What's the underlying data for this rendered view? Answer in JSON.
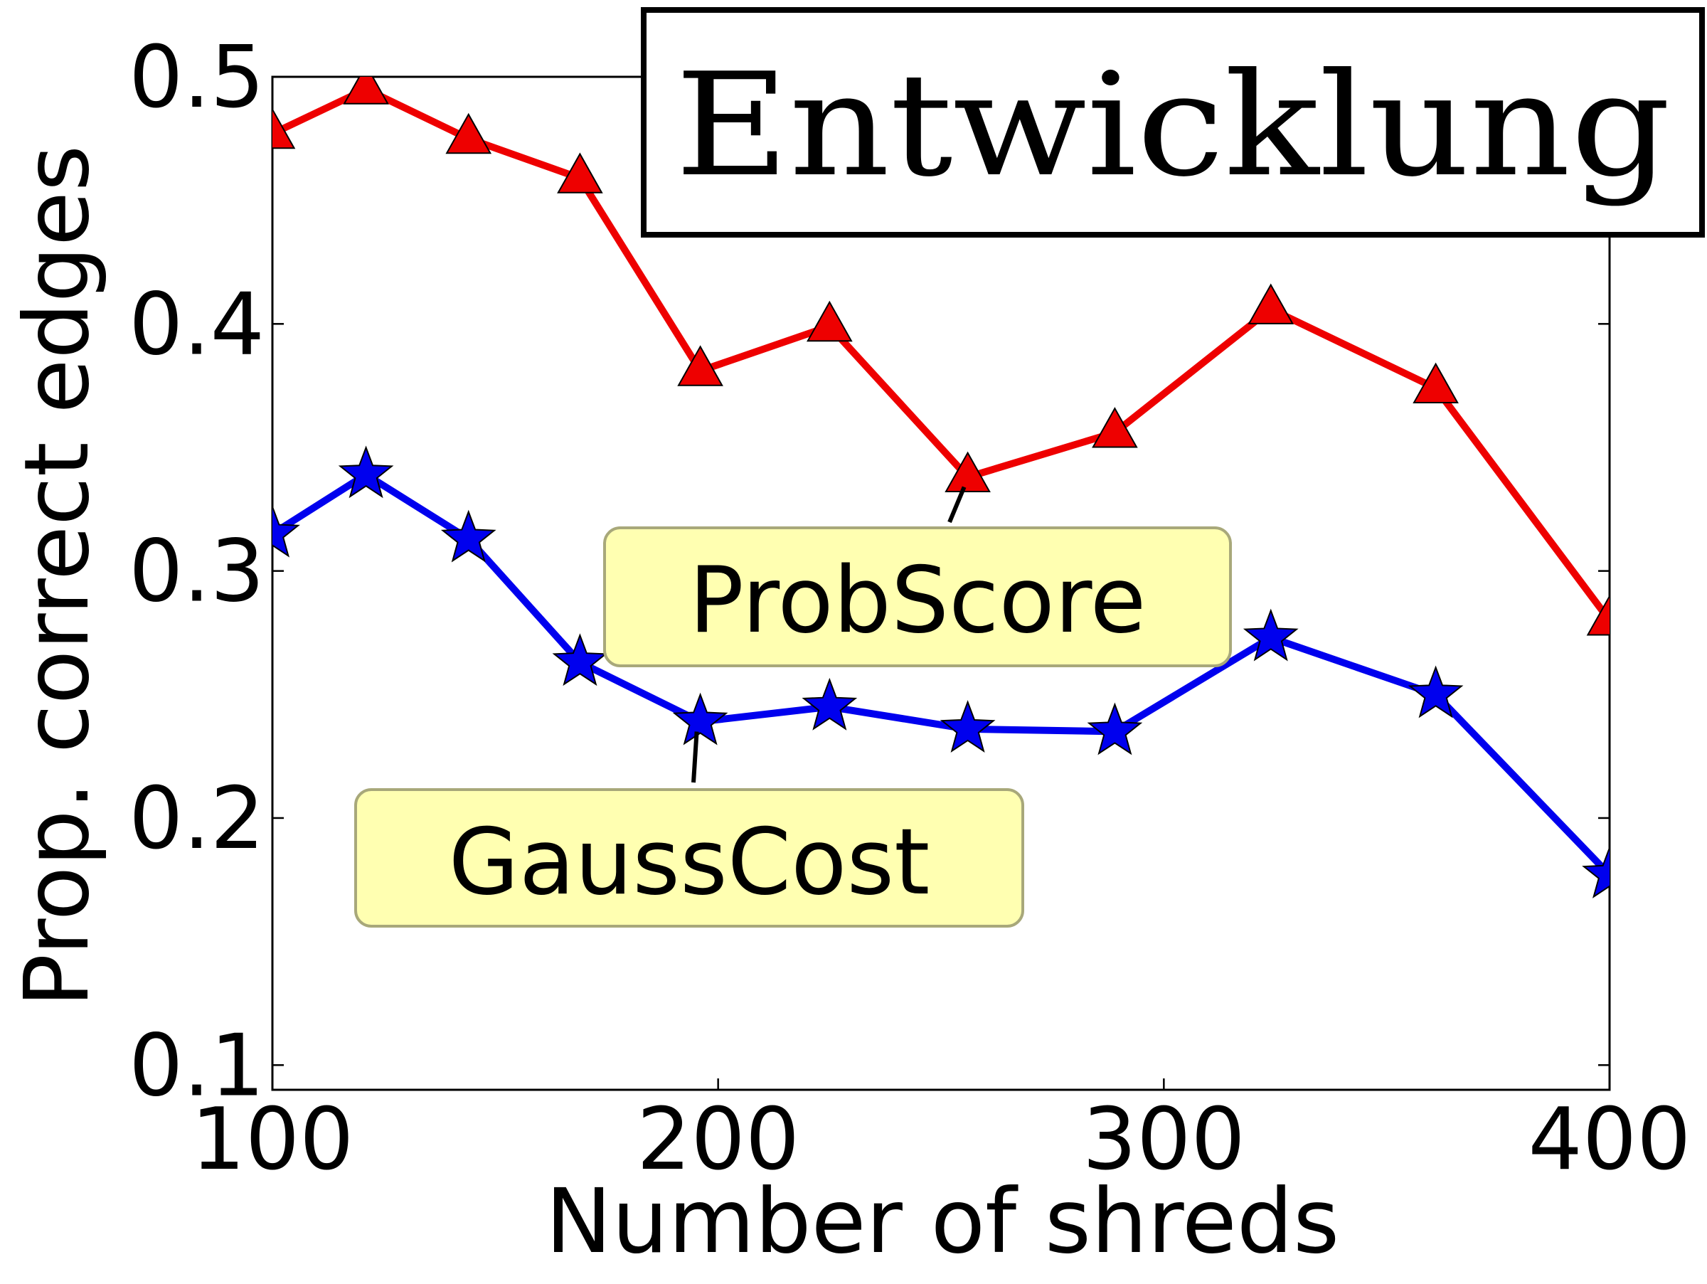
{
  "chart_data": {
    "type": "line",
    "title": "",
    "xlabel": "Number of shreds",
    "ylabel": "Prop. correct edges",
    "xlim": [
      100,
      400
    ],
    "ylim": [
      0.09,
      0.5
    ],
    "xticks": [
      "100",
      "200",
      "300",
      "400"
    ],
    "yticks": [
      "0.1",
      "0.2",
      "0.3",
      "0.4",
      "0.5"
    ],
    "grid": false,
    "x": [
      100,
      121,
      144,
      169,
      196,
      225,
      256,
      289,
      324,
      361,
      400
    ],
    "series": [
      {
        "name": "ProbScore",
        "color": "#ee0000",
        "marker": "triangle",
        "values": [
          0.477,
          0.495,
          0.475,
          0.459,
          0.381,
          0.399,
          0.338,
          0.356,
          0.406,
          0.374,
          0.28
        ]
      },
      {
        "name": "GaussCost",
        "color": "#0000ee",
        "marker": "star",
        "values": [
          0.315,
          0.339,
          0.313,
          0.263,
          0.239,
          0.245,
          0.236,
          0.235,
          0.273,
          0.25,
          0.177
        ]
      }
    ],
    "annotations": [
      {
        "text": "ProbScore",
        "series": 0,
        "point_index": 6
      },
      {
        "text": "GaussCost",
        "series": 1,
        "point_index": 4
      }
    ],
    "inset_word": "Entwicklung"
  }
}
